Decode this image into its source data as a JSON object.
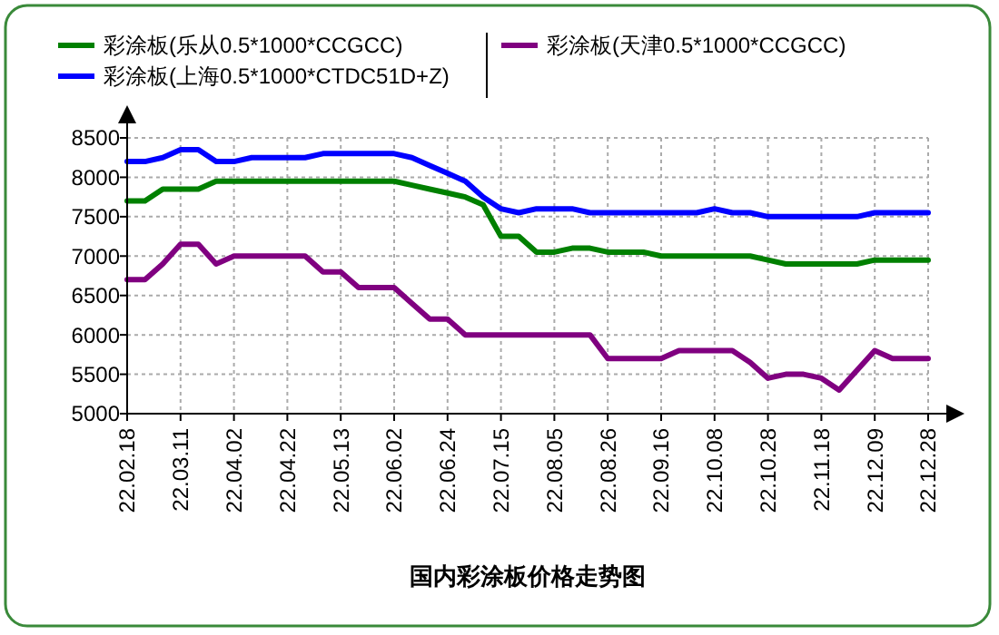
{
  "chart_data": {
    "type": "line",
    "title": "国内彩涂板价格走势图",
    "categories": [
      "22.02.18",
      null,
      null,
      "22.03.11",
      null,
      null,
      "22.04.02",
      null,
      null,
      "22.04.22",
      null,
      null,
      "22.05.13",
      null,
      null,
      "22.06.02",
      null,
      null,
      "22.06.24",
      null,
      null,
      "22.07.15",
      null,
      null,
      "22.08.05",
      null,
      null,
      "22.08.26",
      null,
      null,
      "22.09.16",
      null,
      null,
      "22.10.08",
      null,
      null,
      "22.10.28",
      null,
      null,
      "22.11.18",
      null,
      null,
      "22.12.09",
      null,
      null,
      "22.12.28"
    ],
    "series": [
      {
        "name": "彩涂板(乐从0.5*1000*CCGCC)",
        "color": "#008000",
        "values": [
          7700,
          7700,
          7850,
          7850,
          7850,
          7950,
          7950,
          7950,
          7950,
          7950,
          7950,
          7950,
          7950,
          7950,
          7950,
          7950,
          7900,
          7850,
          7800,
          7750,
          7650,
          7250,
          7250,
          7050,
          7050,
          7100,
          7100,
          7050,
          7050,
          7050,
          7000,
          7000,
          7000,
          7000,
          7000,
          7000,
          6950,
          6900,
          6900,
          6900,
          6900,
          6900,
          6950,
          6950,
          6950,
          6950
        ]
      },
      {
        "name": "彩涂板(上海0.5*1000*CTDC51D+Z)",
        "color": "#0000ff",
        "values": [
          8200,
          8200,
          8250,
          8350,
          8350,
          8200,
          8200,
          8250,
          8250,
          8250,
          8250,
          8300,
          8300,
          8300,
          8300,
          8300,
          8250,
          8150,
          8050,
          7950,
          7750,
          7600,
          7550,
          7600,
          7600,
          7600,
          7550,
          7550,
          7550,
          7550,
          7550,
          7550,
          7550,
          7600,
          7550,
          7550,
          7500,
          7500,
          7500,
          7500,
          7500,
          7500,
          7550,
          7550,
          7550,
          7550
        ]
      },
      {
        "name": "彩涂板(天津0.5*1000*CCGCC)",
        "color": "#800080",
        "values": [
          6700,
          6700,
          6900,
          7150,
          7150,
          6900,
          7000,
          7000,
          7000,
          7000,
          7000,
          6800,
          6800,
          6600,
          6600,
          6600,
          6400,
          6200,
          6200,
          6000,
          6000,
          6000,
          6000,
          6000,
          6000,
          6000,
          6000,
          5700,
          5700,
          5700,
          5700,
          5800,
          5800,
          5800,
          5800,
          5650,
          5450,
          5500,
          5500,
          5450,
          5300,
          5550,
          5800,
          5700,
          5700,
          5700
        ]
      }
    ],
    "ylim": [
      5000,
      8500
    ],
    "yticks": [
      5000,
      5500,
      6000,
      6500,
      7000,
      7500,
      8000,
      8500
    ],
    "grid": true,
    "legend": "top",
    "marker": "none",
    "line_style": "solid"
  }
}
